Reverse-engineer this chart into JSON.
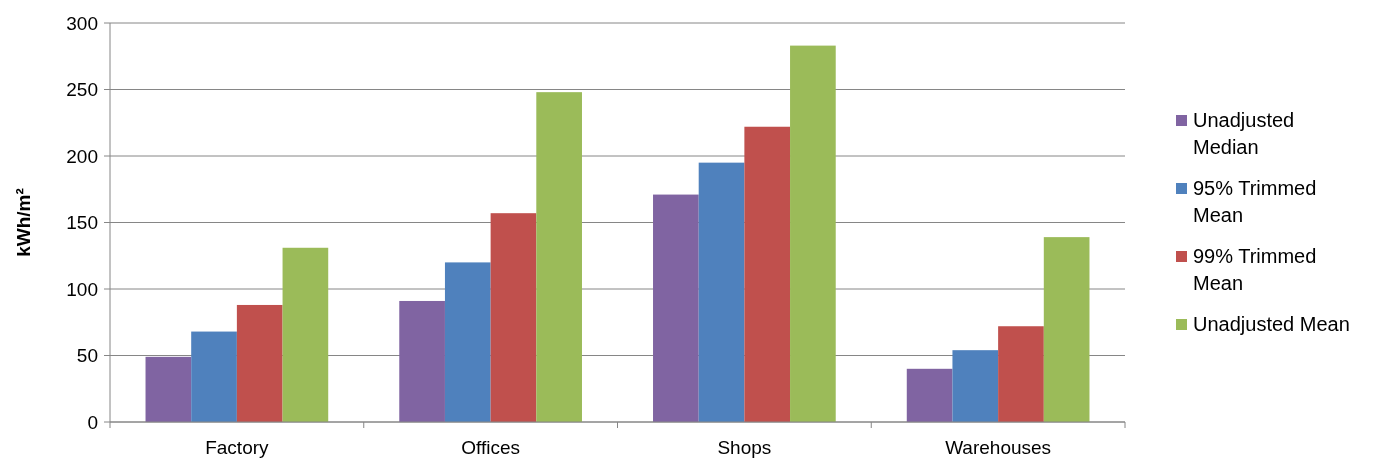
{
  "chart_data": {
    "type": "bar",
    "ylabel": "kWh/m²",
    "categories": [
      "Factory",
      "Offices",
      "Shops",
      "Warehouses"
    ],
    "series": [
      {
        "name": "Unadjusted Median",
        "color": "#8064a2",
        "values": [
          49,
          91,
          171,
          40
        ]
      },
      {
        "name": "95% Trimmed Mean",
        "color": "#4f81bd",
        "values": [
          68,
          120,
          195,
          54
        ]
      },
      {
        "name": "99% Trimmed Mean",
        "color": "#c0504d",
        "values": [
          88,
          157,
          222,
          72
        ]
      },
      {
        "name": "Unadjusted Mean",
        "color": "#9bbb59",
        "values": [
          131,
          248,
          283,
          139
        ]
      }
    ],
    "ylim": [
      0,
      300
    ],
    "yticks": [
      0,
      50,
      100,
      150,
      200,
      250,
      300
    ],
    "grid": "y",
    "legend": "right"
  }
}
